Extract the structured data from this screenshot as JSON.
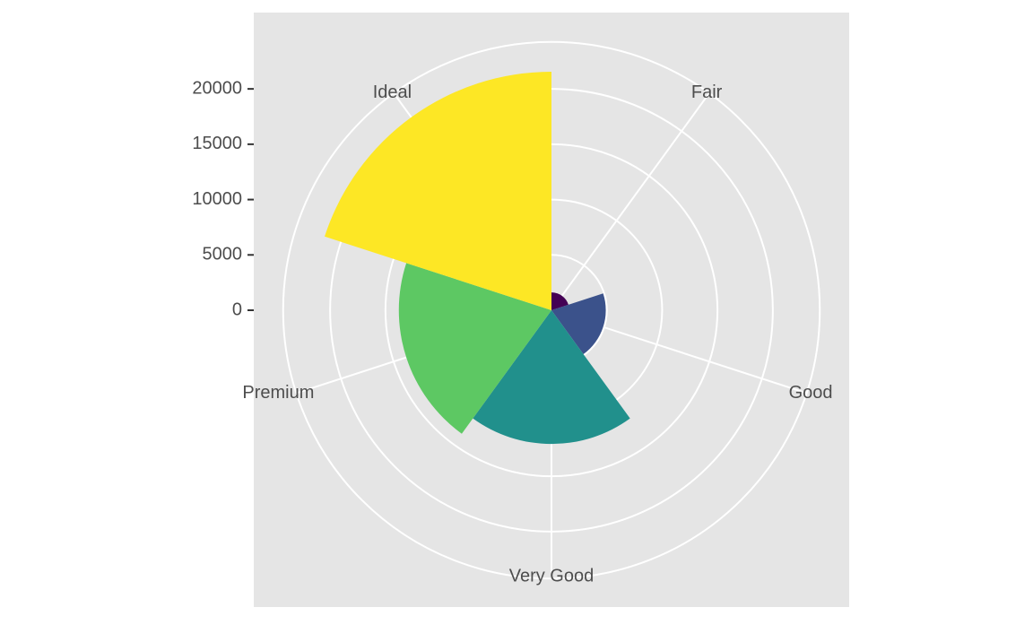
{
  "chart_data": {
    "type": "rose",
    "categories": [
      "Fair",
      "Good",
      "Very Good",
      "Premium",
      "Ideal"
    ],
    "values": [
      1610,
      4906,
      12082,
      13791,
      21551
    ],
    "colors": [
      "#440154",
      "#3B528B",
      "#21908C",
      "#5DC863",
      "#FDE725"
    ],
    "ylim": [
      0,
      21551
    ],
    "yticks": [
      0,
      5000,
      10000,
      15000,
      20000
    ],
    "grid": true
  }
}
